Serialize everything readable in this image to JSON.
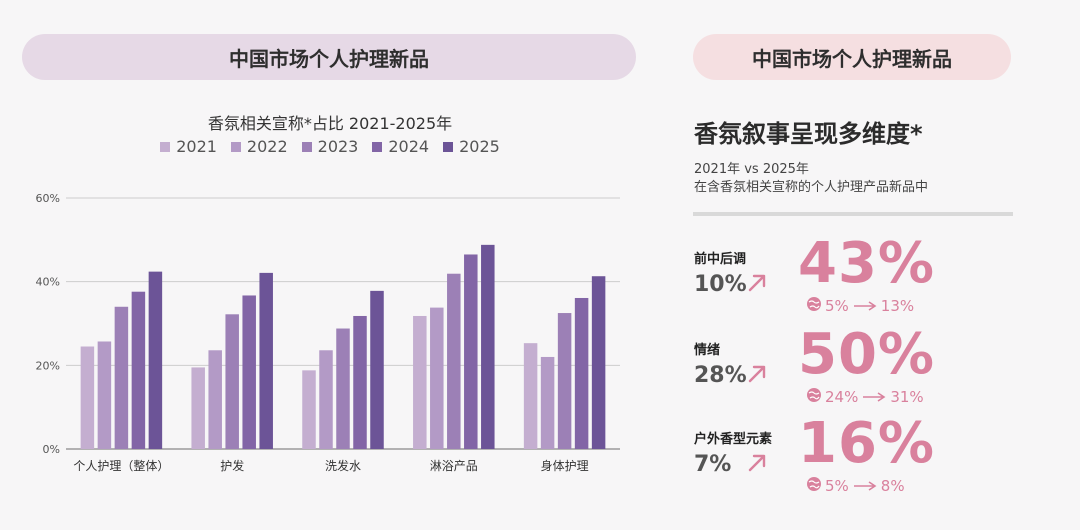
{
  "left_header": "中国市场个人护理新品",
  "right_header": "中国市场个人护理新品",
  "chart_data": {
    "type": "bar",
    "title": "香氛相关宣称*占比  2021-2025年",
    "categories": [
      "个人护理（整体）",
      "护发",
      "洗发水",
      "淋浴产品",
      "身体护理"
    ],
    "series": [
      {
        "name": "2021",
        "color": "#c4aed0",
        "values": [
          24.5,
          19.5,
          18.8,
          31.8,
          25.3
        ]
      },
      {
        "name": "2022",
        "color": "#b39ac6",
        "values": [
          25.7,
          23.6,
          23.6,
          33.8,
          22.0
        ]
      },
      {
        "name": "2023",
        "color": "#9c80b6",
        "values": [
          34.0,
          32.2,
          28.8,
          41.9,
          32.5
        ]
      },
      {
        "name": "2024",
        "color": "#8265a6",
        "values": [
          37.6,
          36.7,
          31.8,
          46.5,
          36.1
        ]
      },
      {
        "name": "2025",
        "color": "#6c5497",
        "values": [
          42.4,
          42.1,
          37.8,
          48.8,
          41.3
        ]
      }
    ],
    "yticks": [
      "0%",
      "20%",
      "40%",
      "60%"
    ],
    "ylim": [
      0,
      60
    ],
    "grid": true,
    "legend_position": "top"
  },
  "headline": "香氛叙事呈现多维度*",
  "subtitle_line1": "2021年 vs 2025年",
  "subtitle_line2": "在含香氛相关宣称的个人护理产品新品中",
  "metrics": [
    {
      "label": "前中后调",
      "base": "10%",
      "big": "43%",
      "from": "5%",
      "to": "13%"
    },
    {
      "label": "情绪",
      "base": "28%",
      "big": "50%",
      "from": "24%",
      "to": "31%"
    },
    {
      "label": "户外香型元素",
      "base": "7%",
      "big": "16%",
      "from": "5%",
      "to": "8%"
    }
  ],
  "colors": {
    "accent_pink": "#d9819d",
    "grid": "#cccccc"
  }
}
